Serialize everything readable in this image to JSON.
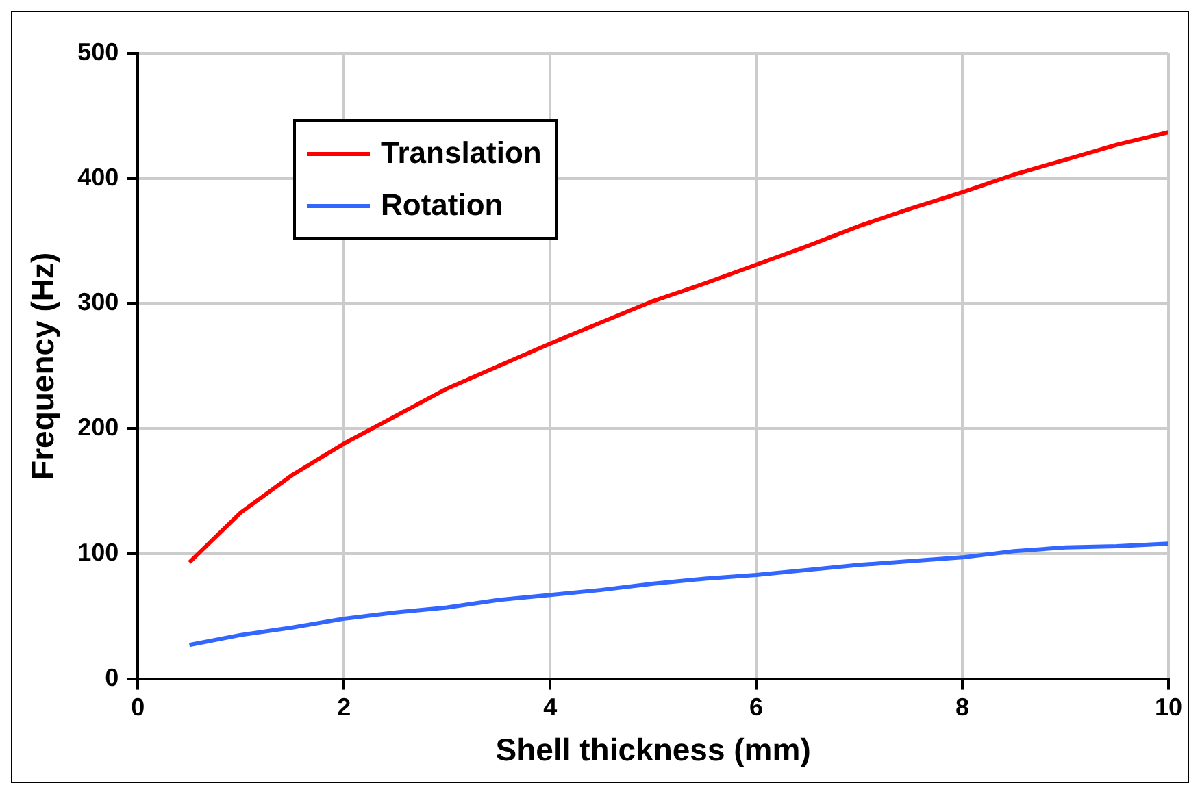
{
  "chart_data": {
    "type": "line",
    "xlabel": "Shell thickness (mm)",
    "ylabel": "Frequency (Hz)",
    "x": [
      0.5,
      1,
      1.5,
      2,
      2.5,
      3,
      3.5,
      4,
      4.5,
      5,
      5.5,
      6,
      6.5,
      7,
      7.5,
      8,
      8.5,
      9,
      9.5,
      10
    ],
    "series": [
      {
        "name": "Translation",
        "color": "#ff0000",
        "values": [
          93,
          133,
          163,
          188,
          210,
          232,
          250,
          268,
          285,
          302,
          316,
          331,
          346,
          362,
          376,
          389,
          403,
          415,
          427,
          437
        ]
      },
      {
        "name": "Rotation",
        "color": "#3366ff",
        "values": [
          27,
          35,
          41,
          48,
          53,
          57,
          63,
          67,
          71,
          76,
          80,
          83,
          87,
          91,
          94,
          97,
          102,
          105,
          106,
          108
        ]
      }
    ],
    "xlim": [
      0,
      10
    ],
    "xticks": [
      0,
      2,
      4,
      6,
      8,
      10
    ],
    "ylim": [
      0,
      500
    ],
    "yticks": [
      0,
      100,
      200,
      300,
      400,
      500
    ],
    "grid": true,
    "legend": "top left",
    "marker": "none",
    "line_style": "solid"
  }
}
